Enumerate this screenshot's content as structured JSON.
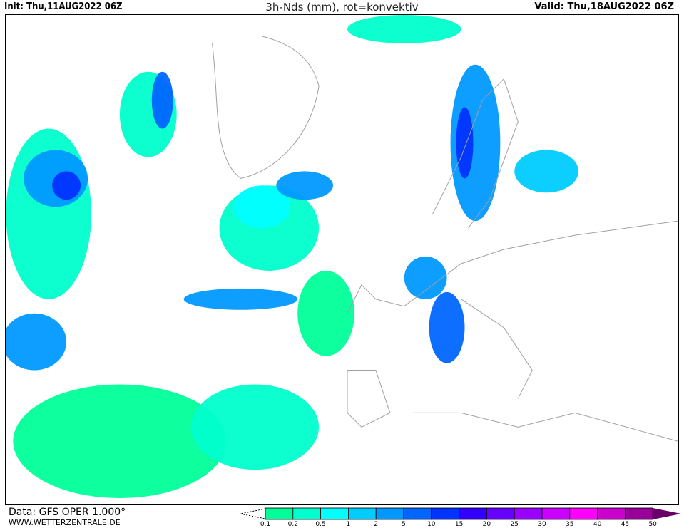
{
  "header": {
    "init": "Init: Thu,11AUG2022 06Z",
    "title": "3h-Nds (mm), rot=konvektiv",
    "valid": "Valid: Thu,18AUG2022 06Z"
  },
  "footer": {
    "source": "Data: GFS OPER 1.000°",
    "website": "WWW.WETTERZENTRALE.DE"
  },
  "legend": {
    "labels": [
      "0.1",
      "0.2",
      "0.5",
      "1",
      "2",
      "5",
      "10",
      "15",
      "20",
      "25",
      "30",
      "35",
      "40",
      "45",
      "50"
    ],
    "colors": [
      "#00ff99",
      "#00ffcc",
      "#00ffff",
      "#00ccff",
      "#0099ff",
      "#0066ff",
      "#0033ff",
      "#3300ff",
      "#6600ff",
      "#9900ff",
      "#cc00ff",
      "#ff00ff",
      "#cc00cc",
      "#990099",
      "#660066"
    ],
    "unit": "mm"
  },
  "map": {
    "region": "North Atlantic and Europe",
    "coastline_color": "#a0a0a0"
  }
}
